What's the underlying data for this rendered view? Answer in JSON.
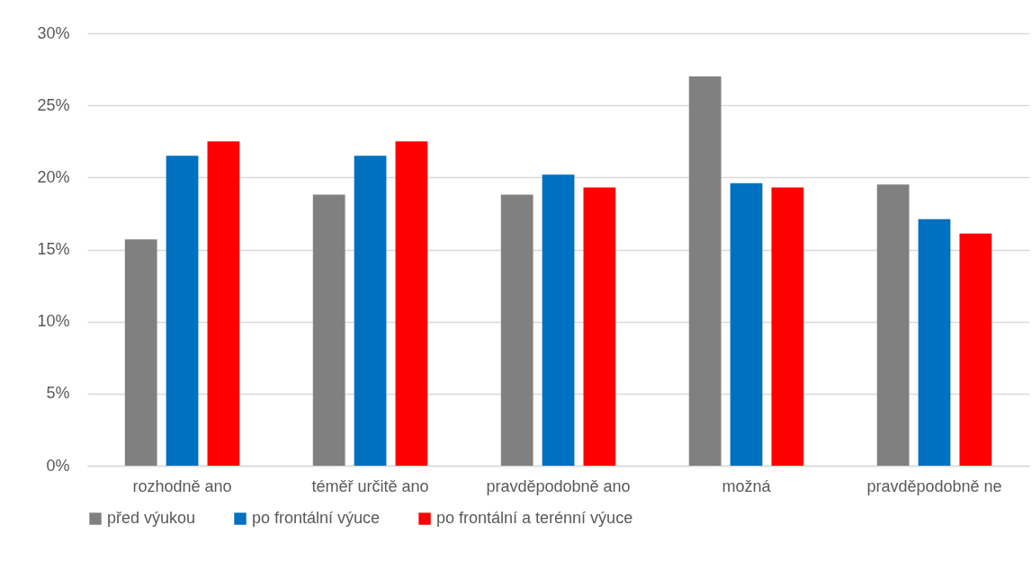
{
  "chart_data": {
    "type": "bar",
    "categories": [
      "rozhodně ano",
      "téměř určitě ano",
      "pravděpodobně ano",
      "možná",
      "pravděpodobně ne"
    ],
    "series": [
      {
        "name": "před výukou",
        "color": "#808080",
        "values": [
          15.7,
          18.8,
          18.8,
          27.0,
          19.5
        ]
      },
      {
        "name": "po frontální výuce",
        "color": "#0070c0",
        "values": [
          21.5,
          21.5,
          20.2,
          19.6,
          17.1
        ]
      },
      {
        "name": "po frontální a terénní výuce",
        "color": "#ff0000",
        "values": [
          22.5,
          22.5,
          19.3,
          19.3,
          16.1
        ]
      }
    ],
    "ylim": [
      0,
      30
    ],
    "yticks": [
      {
        "value": 0,
        "label": "0%"
      },
      {
        "value": 5,
        "label": "5%"
      },
      {
        "value": 10,
        "label": "10%"
      },
      {
        "value": 15,
        "label": "15%"
      },
      {
        "value": 20,
        "label": "20%"
      },
      {
        "value": 25,
        "label": "25%"
      },
      {
        "value": 30,
        "label": "30%"
      }
    ],
    "grid": "y",
    "legend": "bottom"
  }
}
